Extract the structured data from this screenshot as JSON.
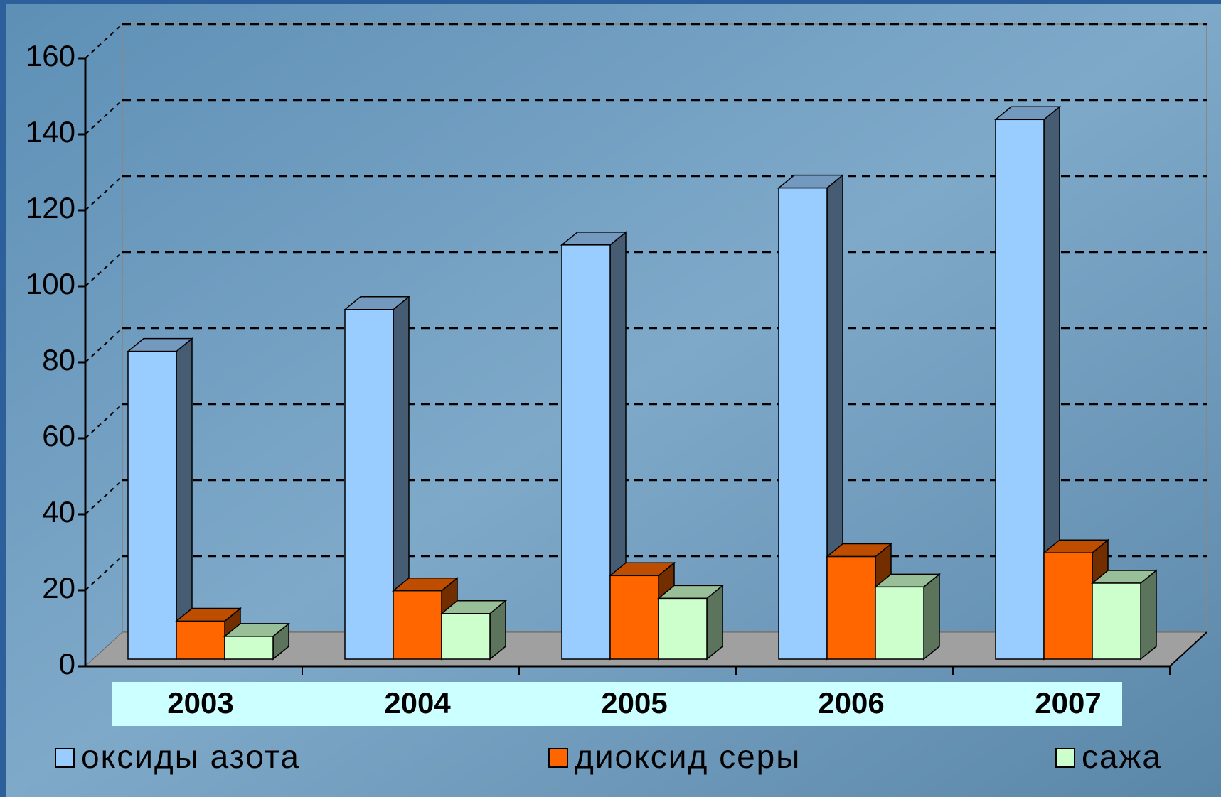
{
  "chart_data": {
    "type": "bar3d",
    "categories": [
      "2003",
      "2004",
      "2005",
      "2006",
      "2007"
    ],
    "series": [
      {
        "name": "оксиды азота",
        "color": "#99ccff",
        "values": [
          81,
          92,
          109,
          124,
          142
        ]
      },
      {
        "name": "диоксид серы",
        "color": "#ff6600",
        "values": [
          10,
          18,
          22,
          27,
          28
        ]
      },
      {
        "name": "сажа",
        "color": "#ccffcc",
        "values": [
          6,
          12,
          16,
          19,
          20
        ]
      }
    ],
    "ylim": [
      0,
      160
    ],
    "yticks": [
      0,
      20,
      40,
      60,
      80,
      100,
      120,
      140,
      160
    ],
    "grid": true,
    "legend": "bottom"
  }
}
